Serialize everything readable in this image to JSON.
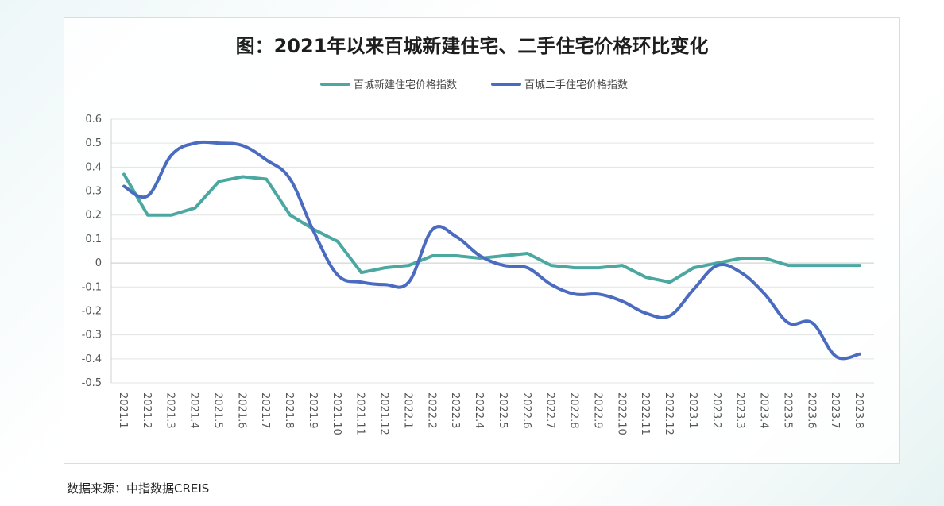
{
  "title": "图：2021年以来百城新建住宅、二手住宅价格环比变化",
  "source": "数据来源：中指数据CREIS",
  "chart_data": {
    "type": "line",
    "title": "图：2021年以来百城新建住宅、二手住宅价格环比变化",
    "xlabel": "",
    "ylabel": "",
    "ylim": [
      -0.5,
      0.6
    ],
    "yticks": [
      0.6,
      0.5,
      0.4,
      0.3,
      0.2,
      0.1,
      0,
      -0.1,
      -0.2,
      -0.3,
      -0.4,
      -0.5
    ],
    "grid": true,
    "legend_position": "top",
    "categories": [
      "2021.1",
      "2021.2",
      "2021.3",
      "2021.4",
      "2021.5",
      "2021.6",
      "2021.7",
      "2021.8",
      "2021.9",
      "2021.10",
      "2021.11",
      "2021.12",
      "2022.1",
      "2022.2",
      "2022.3",
      "2022.4",
      "2022.5",
      "2022.6",
      "2022.7",
      "2022.8",
      "2022.9",
      "2022.10",
      "2022.11",
      "2022.12",
      "2023.1",
      "2023.2",
      "2023.3",
      "2023.4",
      "2023.5",
      "2023.6",
      "2023.7",
      "2023.8"
    ],
    "series": [
      {
        "name": "百城新建住宅价格指数",
        "color": "#4aa8a0",
        "values": [
          0.37,
          0.2,
          0.2,
          0.23,
          0.34,
          0.36,
          0.35,
          0.2,
          0.14,
          0.09,
          -0.04,
          -0.02,
          -0.01,
          0.03,
          0.03,
          0.02,
          0.03,
          0.04,
          -0.01,
          -0.02,
          -0.02,
          -0.01,
          -0.06,
          -0.08,
          -0.02,
          0.0,
          0.02,
          0.02,
          -0.01,
          -0.01,
          -0.01,
          -0.01
        ]
      },
      {
        "name": "百城二手住宅价格指数",
        "color": "#4a6bbf",
        "values": [
          0.32,
          0.28,
          0.45,
          0.5,
          0.5,
          0.49,
          0.43,
          0.35,
          0.13,
          -0.05,
          -0.08,
          -0.09,
          -0.08,
          0.14,
          0.11,
          0.03,
          -0.01,
          -0.02,
          -0.09,
          -0.13,
          -0.13,
          -0.16,
          -0.21,
          -0.22,
          -0.11,
          -0.01,
          -0.04,
          -0.13,
          -0.25,
          -0.25,
          -0.39,
          -0.38
        ]
      }
    ]
  }
}
